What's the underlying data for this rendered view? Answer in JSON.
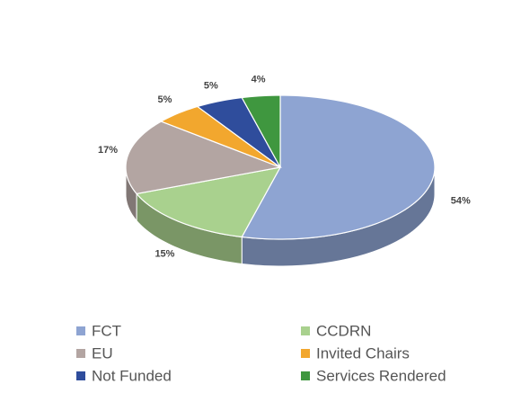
{
  "chart_data": {
    "type": "pie",
    "categories": [
      "FCT",
      "CCDRN",
      "EU",
      "Invited Chairs",
      "Not Funded",
      "Services Rendered"
    ],
    "values": [
      54,
      15,
      17,
      5,
      5,
      4
    ],
    "value_labels": [
      "54%",
      "15%",
      "17%",
      "5%",
      "5%",
      "4%"
    ],
    "colors": [
      "#8ea4d2",
      "#a9d18e",
      "#b3a5a2",
      "#f2a72e",
      "#2f4d9c",
      "#3f973f"
    ],
    "legend": "bottom"
  }
}
